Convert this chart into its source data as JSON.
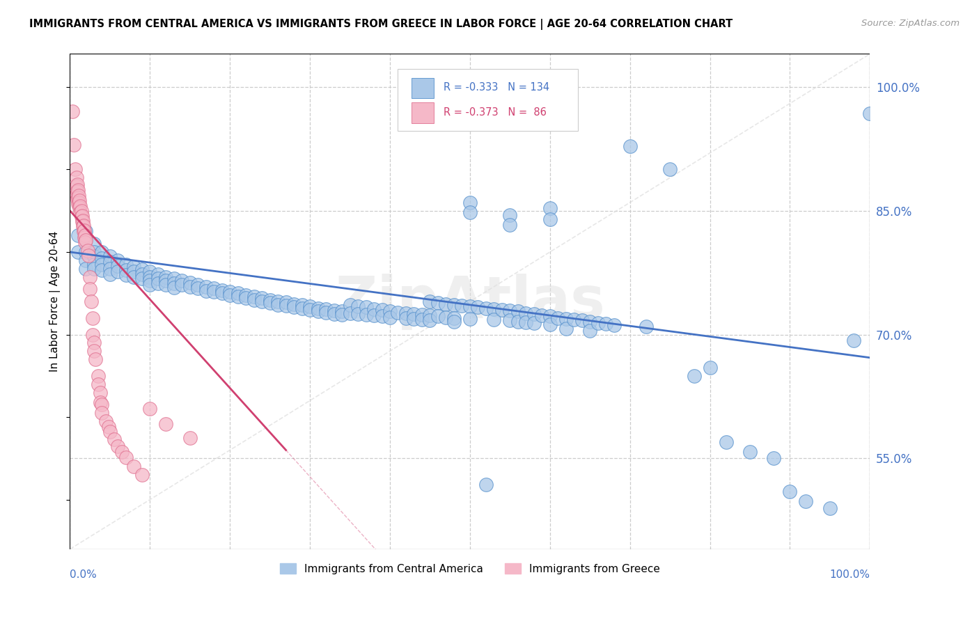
{
  "title": "IMMIGRANTS FROM CENTRAL AMERICA VS IMMIGRANTS FROM GREECE IN LABOR FORCE | AGE 20-64 CORRELATION CHART",
  "source": "Source: ZipAtlas.com",
  "ylabel": "In Labor Force | Age 20-64",
  "x_range": [
    0.0,
    1.0
  ],
  "y_range": [
    0.44,
    1.04
  ],
  "y_ticks": [
    0.55,
    0.7,
    0.85,
    1.0
  ],
  "y_tick_labels": [
    "55.0%",
    "70.0%",
    "85.0%",
    "100.0%"
  ],
  "blue_R": -0.333,
  "blue_N": 134,
  "pink_R": -0.373,
  "pink_N": 86,
  "blue_color": "#aac8e8",
  "pink_color": "#f5b8c8",
  "blue_edge_color": "#5590cc",
  "pink_edge_color": "#e07090",
  "blue_line_color": "#4472c4",
  "pink_line_color": "#d04070",
  "ref_line_color": "#dddddd",
  "grid_color": "#cccccc",
  "watermark": "ZipAtlas",
  "legend_blue_label": "Immigrants from Central America",
  "legend_pink_label": "Immigrants from Greece",
  "blue_trend_x": [
    0.0,
    1.0
  ],
  "blue_trend_y": [
    0.8,
    0.672
  ],
  "pink_trend_x": [
    0.0,
    0.27
  ],
  "pink_trend_y": [
    0.85,
    0.56
  ],
  "blue_scatter": [
    [
      0.01,
      0.82
    ],
    [
      0.01,
      0.8
    ],
    [
      0.02,
      0.825
    ],
    [
      0.02,
      0.815
    ],
    [
      0.02,
      0.8
    ],
    [
      0.02,
      0.79
    ],
    [
      0.02,
      0.78
    ],
    [
      0.03,
      0.81
    ],
    [
      0.03,
      0.8
    ],
    [
      0.03,
      0.795
    ],
    [
      0.03,
      0.785
    ],
    [
      0.03,
      0.78
    ],
    [
      0.04,
      0.8
    ],
    [
      0.04,
      0.792
    ],
    [
      0.04,
      0.785
    ],
    [
      0.04,
      0.778
    ],
    [
      0.05,
      0.795
    ],
    [
      0.05,
      0.788
    ],
    [
      0.05,
      0.78
    ],
    [
      0.05,
      0.773
    ],
    [
      0.06,
      0.79
    ],
    [
      0.06,
      0.783
    ],
    [
      0.06,
      0.776
    ],
    [
      0.07,
      0.785
    ],
    [
      0.07,
      0.778
    ],
    [
      0.07,
      0.772
    ],
    [
      0.08,
      0.782
    ],
    [
      0.08,
      0.776
    ],
    [
      0.08,
      0.77
    ],
    [
      0.09,
      0.779
    ],
    [
      0.09,
      0.773
    ],
    [
      0.09,
      0.768
    ],
    [
      0.1,
      0.776
    ],
    [
      0.1,
      0.77
    ],
    [
      0.1,
      0.765
    ],
    [
      0.1,
      0.76
    ],
    [
      0.11,
      0.773
    ],
    [
      0.11,
      0.768
    ],
    [
      0.11,
      0.762
    ],
    [
      0.12,
      0.77
    ],
    [
      0.12,
      0.765
    ],
    [
      0.12,
      0.76
    ],
    [
      0.13,
      0.768
    ],
    [
      0.13,
      0.762
    ],
    [
      0.13,
      0.757
    ],
    [
      0.14,
      0.765
    ],
    [
      0.14,
      0.76
    ],
    [
      0.15,
      0.763
    ],
    [
      0.15,
      0.758
    ],
    [
      0.16,
      0.76
    ],
    [
      0.16,
      0.756
    ],
    [
      0.17,
      0.758
    ],
    [
      0.17,
      0.753
    ],
    [
      0.18,
      0.756
    ],
    [
      0.18,
      0.752
    ],
    [
      0.19,
      0.754
    ],
    [
      0.19,
      0.75
    ],
    [
      0.2,
      0.752
    ],
    [
      0.2,
      0.748
    ],
    [
      0.21,
      0.75
    ],
    [
      0.21,
      0.746
    ],
    [
      0.22,
      0.748
    ],
    [
      0.22,
      0.744
    ],
    [
      0.23,
      0.746
    ],
    [
      0.23,
      0.742
    ],
    [
      0.24,
      0.744
    ],
    [
      0.24,
      0.74
    ],
    [
      0.25,
      0.742
    ],
    [
      0.25,
      0.738
    ],
    [
      0.26,
      0.74
    ],
    [
      0.26,
      0.736
    ],
    [
      0.27,
      0.739
    ],
    [
      0.27,
      0.735
    ],
    [
      0.28,
      0.737
    ],
    [
      0.28,
      0.733
    ],
    [
      0.29,
      0.736
    ],
    [
      0.29,
      0.732
    ],
    [
      0.3,
      0.734
    ],
    [
      0.3,
      0.73
    ],
    [
      0.31,
      0.732
    ],
    [
      0.31,
      0.728
    ],
    [
      0.32,
      0.731
    ],
    [
      0.32,
      0.727
    ],
    [
      0.33,
      0.729
    ],
    [
      0.33,
      0.725
    ],
    [
      0.34,
      0.728
    ],
    [
      0.34,
      0.724
    ],
    [
      0.35,
      0.736
    ],
    [
      0.35,
      0.726
    ],
    [
      0.36,
      0.734
    ],
    [
      0.36,
      0.725
    ],
    [
      0.37,
      0.733
    ],
    [
      0.37,
      0.724
    ],
    [
      0.38,
      0.731
    ],
    [
      0.38,
      0.723
    ],
    [
      0.39,
      0.73
    ],
    [
      0.39,
      0.722
    ],
    [
      0.4,
      0.728
    ],
    [
      0.4,
      0.721
    ],
    [
      0.41,
      0.727
    ],
    [
      0.42,
      0.726
    ],
    [
      0.42,
      0.72
    ],
    [
      0.43,
      0.725
    ],
    [
      0.43,
      0.719
    ],
    [
      0.44,
      0.724
    ],
    [
      0.44,
      0.718
    ],
    [
      0.45,
      0.74
    ],
    [
      0.45,
      0.723
    ],
    [
      0.45,
      0.717
    ],
    [
      0.46,
      0.738
    ],
    [
      0.46,
      0.722
    ],
    [
      0.47,
      0.737
    ],
    [
      0.47,
      0.721
    ],
    [
      0.48,
      0.736
    ],
    [
      0.48,
      0.72
    ],
    [
      0.48,
      0.716
    ],
    [
      0.49,
      0.735
    ],
    [
      0.5,
      0.86
    ],
    [
      0.5,
      0.848
    ],
    [
      0.5,
      0.734
    ],
    [
      0.5,
      0.719
    ],
    [
      0.51,
      0.733
    ],
    [
      0.52,
      0.732
    ],
    [
      0.52,
      0.518
    ],
    [
      0.53,
      0.731
    ],
    [
      0.53,
      0.718
    ],
    [
      0.54,
      0.73
    ],
    [
      0.55,
      0.845
    ],
    [
      0.55,
      0.833
    ],
    [
      0.55,
      0.729
    ],
    [
      0.55,
      0.717
    ],
    [
      0.56,
      0.728
    ],
    [
      0.56,
      0.716
    ],
    [
      0.57,
      0.726
    ],
    [
      0.57,
      0.715
    ],
    [
      0.58,
      0.725
    ],
    [
      0.58,
      0.714
    ],
    [
      0.59,
      0.723
    ],
    [
      0.6,
      0.853
    ],
    [
      0.6,
      0.84
    ],
    [
      0.6,
      0.722
    ],
    [
      0.6,
      0.712
    ],
    [
      0.61,
      0.72
    ],
    [
      0.62,
      0.719
    ],
    [
      0.62,
      0.707
    ],
    [
      0.63,
      0.718
    ],
    [
      0.64,
      0.717
    ],
    [
      0.65,
      0.716
    ],
    [
      0.65,
      0.705
    ],
    [
      0.66,
      0.714
    ],
    [
      0.67,
      0.713
    ],
    [
      0.68,
      0.711
    ],
    [
      0.7,
      0.928
    ],
    [
      0.72,
      0.71
    ],
    [
      0.75,
      0.9
    ],
    [
      0.78,
      0.65
    ],
    [
      0.8,
      0.66
    ],
    [
      0.82,
      0.57
    ],
    [
      0.85,
      0.558
    ],
    [
      0.88,
      0.55
    ],
    [
      0.9,
      0.51
    ],
    [
      0.92,
      0.498
    ],
    [
      0.95,
      0.49
    ],
    [
      0.98,
      0.693
    ],
    [
      1.0,
      0.968
    ]
  ],
  "pink_scatter": [
    [
      0.003,
      0.97
    ],
    [
      0.005,
      0.93
    ],
    [
      0.007,
      0.9
    ],
    [
      0.008,
      0.89
    ],
    [
      0.008,
      0.88
    ],
    [
      0.008,
      0.87
    ],
    [
      0.009,
      0.882
    ],
    [
      0.009,
      0.873
    ],
    [
      0.009,
      0.864
    ],
    [
      0.01,
      0.875
    ],
    [
      0.01,
      0.866
    ],
    [
      0.01,
      0.858
    ],
    [
      0.011,
      0.868
    ],
    [
      0.011,
      0.86
    ],
    [
      0.012,
      0.862
    ],
    [
      0.012,
      0.854
    ],
    [
      0.013,
      0.856
    ],
    [
      0.013,
      0.848
    ],
    [
      0.014,
      0.85
    ],
    [
      0.014,
      0.843
    ],
    [
      0.015,
      0.844
    ],
    [
      0.015,
      0.837
    ],
    [
      0.016,
      0.838
    ],
    [
      0.016,
      0.831
    ],
    [
      0.017,
      0.832
    ],
    [
      0.017,
      0.825
    ],
    [
      0.018,
      0.826
    ],
    [
      0.018,
      0.818
    ],
    [
      0.019,
      0.82
    ],
    [
      0.019,
      0.812
    ],
    [
      0.02,
      0.814
    ],
    [
      0.022,
      0.802
    ],
    [
      0.023,
      0.796
    ],
    [
      0.025,
      0.77
    ],
    [
      0.025,
      0.755
    ],
    [
      0.027,
      0.74
    ],
    [
      0.028,
      0.72
    ],
    [
      0.028,
      0.7
    ],
    [
      0.03,
      0.69
    ],
    [
      0.03,
      0.68
    ],
    [
      0.032,
      0.67
    ],
    [
      0.035,
      0.65
    ],
    [
      0.035,
      0.64
    ],
    [
      0.038,
      0.63
    ],
    [
      0.038,
      0.618
    ],
    [
      0.04,
      0.615
    ],
    [
      0.04,
      0.605
    ],
    [
      0.045,
      0.595
    ],
    [
      0.048,
      0.588
    ],
    [
      0.05,
      0.582
    ],
    [
      0.055,
      0.573
    ],
    [
      0.06,
      0.565
    ],
    [
      0.065,
      0.558
    ],
    [
      0.07,
      0.551
    ],
    [
      0.08,
      0.54
    ],
    [
      0.09,
      0.53
    ],
    [
      0.1,
      0.61
    ],
    [
      0.12,
      0.592
    ],
    [
      0.15,
      0.575
    ]
  ]
}
